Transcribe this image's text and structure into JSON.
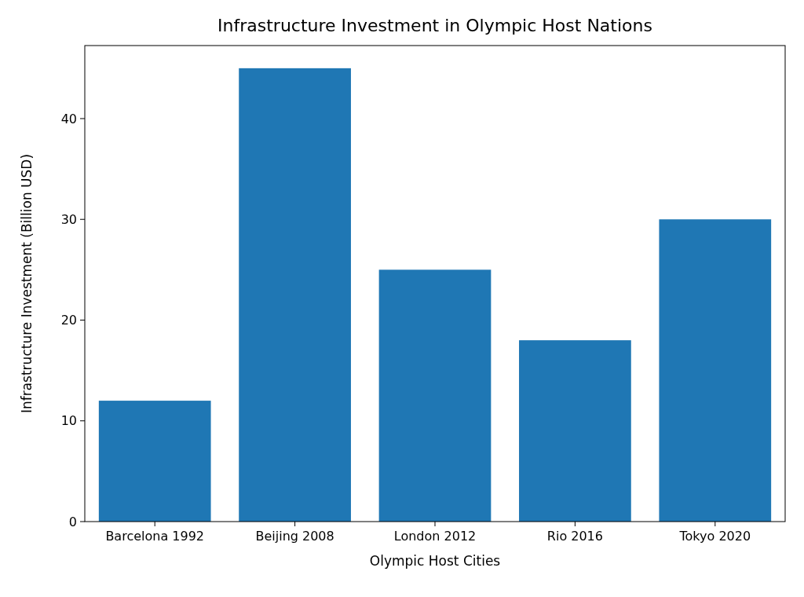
{
  "chart_data": {
    "type": "bar",
    "title": "Infrastructure Investment in Olympic Host Nations",
    "xlabel": "Olympic Host Cities",
    "ylabel": "Infrastructure Investment (Billion USD)",
    "categories": [
      "Barcelona 1992",
      "Beijing 2008",
      "London 2012",
      "Rio 2016",
      "Tokyo 2020"
    ],
    "values": [
      12,
      45,
      25,
      18,
      30
    ],
    "color": "#1f77b4",
    "ylim": [
      0,
      47.25
    ],
    "yticks": [
      0,
      10,
      20,
      30,
      40
    ]
  }
}
